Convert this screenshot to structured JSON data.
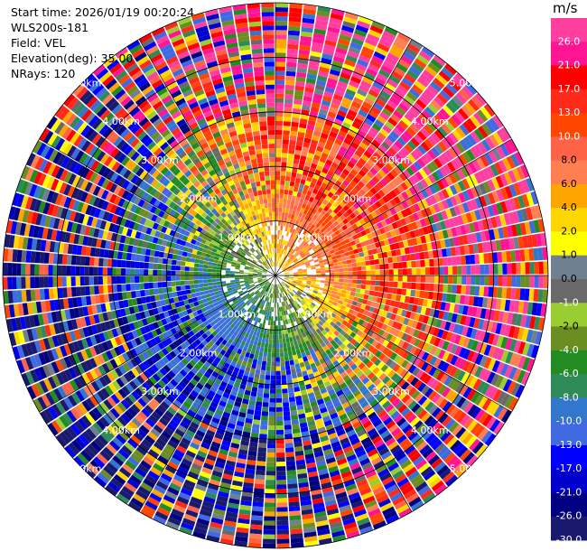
{
  "header": {
    "start_time_label": "Start time:",
    "start_time": "2026/01/19 00:20:24",
    "instrument": "WLS200s-181",
    "field_label": "Field:",
    "field": "VEL",
    "elevation_label": "Elevation(deg):",
    "elevation": "35.00",
    "nrays_label": "NRays:",
    "nrays": "120"
  },
  "chart_data": {
    "type": "ppi",
    "field": "VEL",
    "elevation_deg": 35.0,
    "n_rays": 120,
    "range_max_km": 5.0,
    "range_ring_km": [
      1.0,
      2.0,
      3.0,
      4.0,
      5.0
    ],
    "range_ring_labels": [
      "1.00km",
      "2.00km",
      "3.00km",
      "4.00km",
      "5.00km"
    ],
    "units": "m/s",
    "colorbar": {
      "ticks": [
        "26.0",
        "21.0",
        "17.0",
        "13.0",
        "10.0",
        "8.0",
        "6.0",
        "4.0",
        "2.0",
        "1.0",
        "0.0",
        "-1.0",
        "-2.0",
        "-4.0",
        "-6.0",
        "-8.0",
        "-10.0",
        "-13.0",
        "-17.0",
        "-21.0",
        "-26.0",
        "-30.0"
      ],
      "bins": [
        {
          "min": 26,
          "max": 30,
          "color": "#ff3f9f"
        },
        {
          "min": 21,
          "max": 26,
          "color": "#ff1493"
        },
        {
          "min": 17,
          "max": 21,
          "color": "#ff0000"
        },
        {
          "min": 13,
          "max": 17,
          "color": "#ff2a1a"
        },
        {
          "min": 10,
          "max": 13,
          "color": "#ff4500"
        },
        {
          "min": 8,
          "max": 10,
          "color": "#ff6347"
        },
        {
          "min": 6,
          "max": 8,
          "color": "#ff7f50"
        },
        {
          "min": 4,
          "max": 6,
          "color": "#ffa500"
        },
        {
          "min": 2,
          "max": 4,
          "color": "#ffd700"
        },
        {
          "min": 1,
          "max": 2,
          "color": "#ffff00"
        },
        {
          "min": 0,
          "max": 1,
          "color": "#708090"
        },
        {
          "min": -1,
          "max": 0,
          "color": "#696969"
        },
        {
          "min": -2,
          "max": -1,
          "color": "#9acd32"
        },
        {
          "min": -4,
          "max": -2,
          "color": "#6b8e23"
        },
        {
          "min": -6,
          "max": -4,
          "color": "#228b22"
        },
        {
          "min": -8,
          "max": -6,
          "color": "#2e8b57"
        },
        {
          "min": -10,
          "max": -8,
          "color": "#3377cc"
        },
        {
          "min": -13,
          "max": -10,
          "color": "#4169e1"
        },
        {
          "min": -17,
          "max": -13,
          "color": "#0000ff"
        },
        {
          "min": -21,
          "max": -17,
          "color": "#0000cd"
        },
        {
          "min": -26,
          "max": -21,
          "color": "#000080"
        },
        {
          "min": -30,
          "max": -26,
          "color": "#191970"
        }
      ]
    }
  }
}
